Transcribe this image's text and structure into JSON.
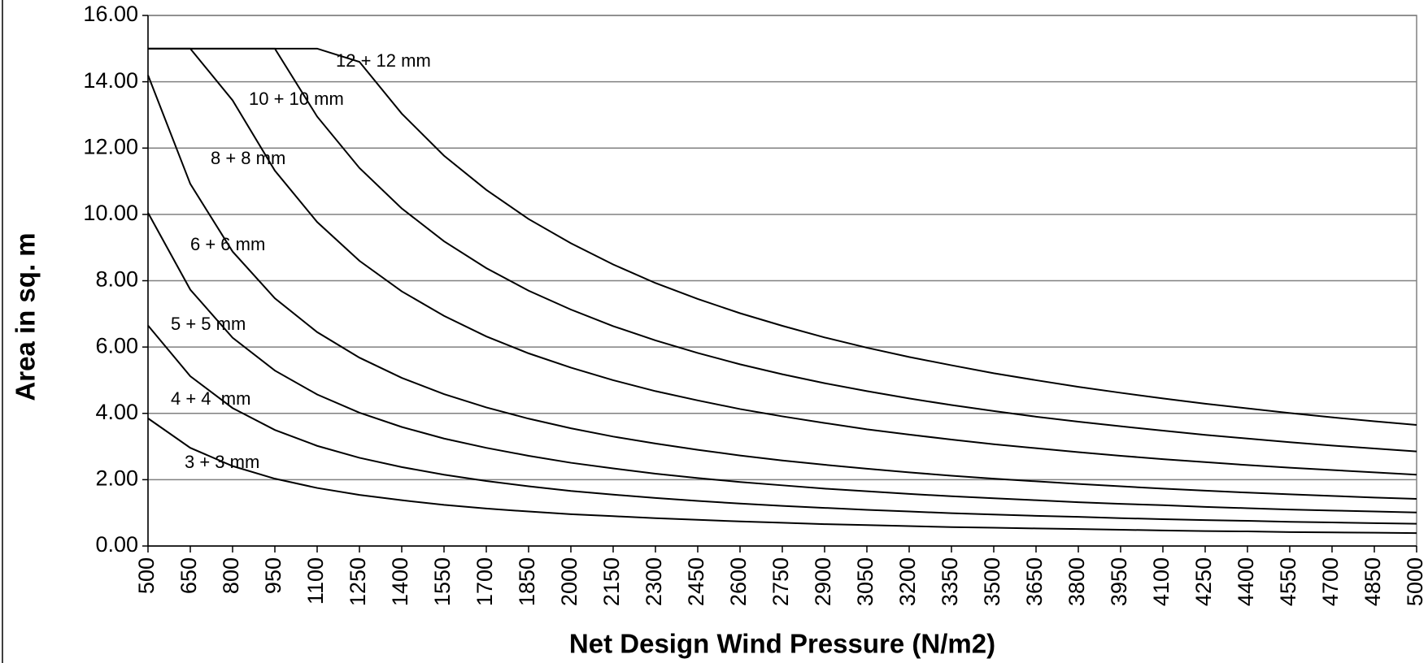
{
  "chart_data": {
    "type": "line",
    "xlabel": "Net Design Wind Pressure (N/m2)",
    "ylabel": "Area in sq. m",
    "x": [
      500,
      650,
      800,
      950,
      1100,
      1250,
      1400,
      1550,
      1700,
      1850,
      2000,
      2150,
      2300,
      2450,
      2600,
      2750,
      2900,
      3050,
      3200,
      3350,
      3500,
      3650,
      3800,
      3950,
      4100,
      4250,
      4400,
      4550,
      4700,
      4850,
      5000
    ],
    "xlim": [
      500,
      5000
    ],
    "xticks": [
      500,
      650,
      800,
      950,
      1100,
      1250,
      1400,
      1550,
      1700,
      1850,
      2000,
      2150,
      2300,
      2450,
      2600,
      2750,
      2900,
      3050,
      3200,
      3350,
      3500,
      3650,
      3800,
      3950,
      4100,
      4250,
      4400,
      4550,
      4700,
      4850,
      5000
    ],
    "ylim": [
      0,
      16
    ],
    "yticks": [
      {
        "value": 0,
        "label": "0.00"
      },
      {
        "value": 2,
        "label": "2.00"
      },
      {
        "value": 4,
        "label": "4.00"
      },
      {
        "value": 6,
        "label": "6.00"
      },
      {
        "value": 8,
        "label": "8.00"
      },
      {
        "value": 10,
        "label": "10.00"
      },
      {
        "value": 12,
        "label": "12.00"
      },
      {
        "value": 14,
        "label": "14.00"
      },
      {
        "value": 16,
        "label": "16.00"
      }
    ],
    "grid": true,
    "series": [
      {
        "name": "3 + 3 mm",
        "color": "#000000",
        "values": [
          3.85,
          2.96,
          2.41,
          2.03,
          1.75,
          1.54,
          1.38,
          1.24,
          1.13,
          1.04,
          0.96,
          0.9,
          0.84,
          0.79,
          0.74,
          0.7,
          0.66,
          0.63,
          0.6,
          0.57,
          0.55,
          0.53,
          0.51,
          0.49,
          0.47,
          0.45,
          0.44,
          0.42,
          0.41,
          0.4,
          0.39
        ]
      },
      {
        "name": "4 + 4  mm",
        "color": "#000000",
        "values": [
          6.65,
          5.12,
          4.16,
          3.5,
          3.02,
          2.66,
          2.38,
          2.15,
          1.96,
          1.8,
          1.66,
          1.55,
          1.45,
          1.36,
          1.28,
          1.21,
          1.15,
          1.09,
          1.04,
          0.99,
          0.95,
          0.91,
          0.88,
          0.84,
          0.81,
          0.78,
          0.76,
          0.73,
          0.71,
          0.69,
          0.67
        ]
      },
      {
        "name": "5 + 5 mm",
        "color": "#000000",
        "values": [
          10.05,
          7.73,
          6.28,
          5.29,
          4.57,
          4.02,
          3.59,
          3.24,
          2.96,
          2.72,
          2.51,
          2.34,
          2.18,
          2.05,
          1.93,
          1.83,
          1.73,
          1.65,
          1.57,
          1.5,
          1.44,
          1.38,
          1.32,
          1.27,
          1.23,
          1.18,
          1.14,
          1.1,
          1.07,
          1.04,
          1.01
        ]
      },
      {
        "name": "6 + 6 mm",
        "color": "#000000",
        "values": [
          14.2,
          10.92,
          8.88,
          7.47,
          6.45,
          5.68,
          5.07,
          4.58,
          4.18,
          3.84,
          3.55,
          3.3,
          3.09,
          2.9,
          2.73,
          2.58,
          2.45,
          2.33,
          2.22,
          2.12,
          2.03,
          1.95,
          1.87,
          1.8,
          1.73,
          1.67,
          1.61,
          1.56,
          1.51,
          1.46,
          1.42
        ]
      },
      {
        "name": "8 + 8 mm",
        "color": "#000000",
        "values": [
          15,
          15,
          13.44,
          11.32,
          9.77,
          8.6,
          7.68,
          6.94,
          6.32,
          5.81,
          5.38,
          5.0,
          4.67,
          4.39,
          4.13,
          3.91,
          3.71,
          3.52,
          3.36,
          3.21,
          3.07,
          2.95,
          2.83,
          2.72,
          2.62,
          2.53,
          2.44,
          2.36,
          2.29,
          2.22,
          2.15
        ]
      },
      {
        "name": "10 + 10 mm",
        "color": "#000000",
        "values": [
          15,
          15,
          15,
          15,
          12.95,
          11.4,
          10.18,
          9.19,
          8.38,
          7.7,
          7.13,
          6.63,
          6.2,
          5.82,
          5.48,
          5.18,
          4.91,
          4.67,
          4.45,
          4.25,
          4.07,
          3.9,
          3.75,
          3.61,
          3.48,
          3.35,
          3.24,
          3.13,
          3.03,
          2.94,
          2.85
        ]
      },
      {
        "name": "12 + 12 mm",
        "color": "#000000",
        "values": [
          15,
          15,
          15,
          15,
          15,
          14.6,
          13.04,
          11.77,
          10.74,
          9.86,
          9.13,
          8.49,
          7.93,
          7.45,
          7.02,
          6.64,
          6.29,
          5.98,
          5.7,
          5.45,
          5.21,
          5.0,
          4.8,
          4.62,
          4.45,
          4.29,
          4.15,
          4.01,
          3.88,
          3.76,
          3.65
        ]
      }
    ]
  }
}
